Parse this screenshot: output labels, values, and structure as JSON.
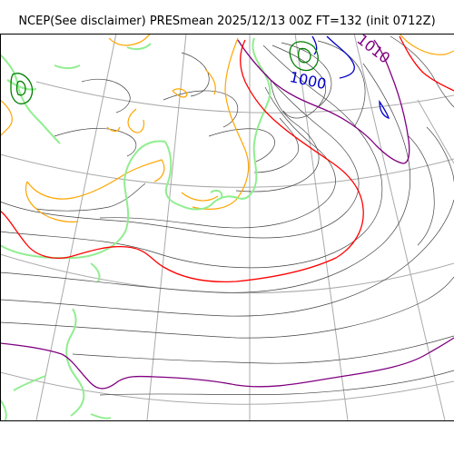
{
  "title": "NCEP(See disclaimer) PRESmean 2025/12/13 00Z FT=132 (init 0712Z)",
  "contour_labels": {
    "low_1000": "1000",
    "label_1010": "1010"
  },
  "colors": {
    "graticule": "#aaaaaa",
    "isobar": "#444444",
    "coastline": "#90ee90",
    "terrain": "#ffa500",
    "isobar_1010": "#800080",
    "isobar_1020": "#ff0000",
    "isobar_1000": "#0000cd",
    "high_center": "#008000",
    "frame": "#000000"
  }
}
